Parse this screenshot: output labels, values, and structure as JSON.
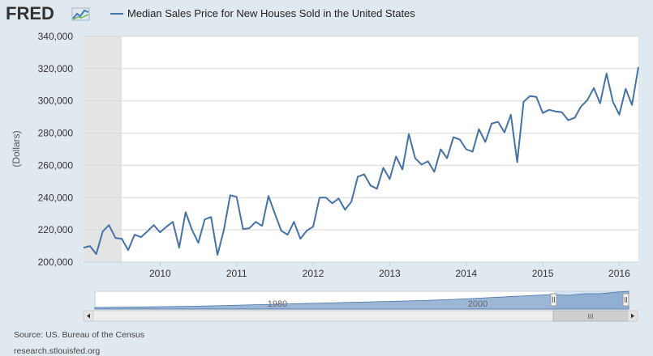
{
  "logo": {
    "text": "FRED"
  },
  "legend": {
    "label": "Median Sales Price for New Houses Sold in the United States",
    "color": "#4572a7"
  },
  "footer": {
    "source": "Source: US. Bureau of the Census",
    "site": "research.stlouisfed.org"
  },
  "navigator": {
    "labels": [
      "1980",
      "2000"
    ],
    "scroll_glyph": "III"
  },
  "chart_data": {
    "type": "line",
    "title": "",
    "xlabel": "",
    "ylabel": "(Dollars)",
    "ylim": [
      200000,
      340000
    ],
    "yticks": [
      200000,
      220000,
      240000,
      260000,
      280000,
      300000,
      320000,
      340000
    ],
    "ytick_labels": [
      "200,000",
      "220,000",
      "240,000",
      "260,000",
      "280,000",
      "300,000",
      "320,000",
      "340,000"
    ],
    "xlim": [
      "2009-01",
      "2016-04"
    ],
    "xticks": [
      "2010-01",
      "2011-01",
      "2012-01",
      "2013-01",
      "2014-01",
      "2015-01",
      "2016-01"
    ],
    "xtick_labels": [
      "2010",
      "2011",
      "2012",
      "2013",
      "2014",
      "2015",
      "2016"
    ],
    "recession_shading": [
      "2009-01",
      "2009-06"
    ],
    "grid": true,
    "series": [
      {
        "name": "Median Sales Price for New Houses Sold in the United States",
        "color": "#4572a7",
        "x": [
          "2009-01",
          "2009-02",
          "2009-03",
          "2009-04",
          "2009-05",
          "2009-06",
          "2009-07",
          "2009-08",
          "2009-09",
          "2009-10",
          "2009-11",
          "2009-12",
          "2010-01",
          "2010-02",
          "2010-03",
          "2010-04",
          "2010-05",
          "2010-06",
          "2010-07",
          "2010-08",
          "2010-09",
          "2010-10",
          "2010-11",
          "2010-12",
          "2011-01",
          "2011-02",
          "2011-03",
          "2011-04",
          "2011-05",
          "2011-06",
          "2011-07",
          "2011-08",
          "2011-09",
          "2011-10",
          "2011-11",
          "2011-12",
          "2012-01",
          "2012-02",
          "2012-03",
          "2012-04",
          "2012-05",
          "2012-06",
          "2012-07",
          "2012-08",
          "2012-09",
          "2012-10",
          "2012-11",
          "2012-12",
          "2013-01",
          "2013-02",
          "2013-03",
          "2013-04",
          "2013-05",
          "2013-06",
          "2013-07",
          "2013-08",
          "2013-09",
          "2013-10",
          "2013-11",
          "2013-12",
          "2014-01",
          "2014-02",
          "2014-03",
          "2014-04",
          "2014-05",
          "2014-06",
          "2014-07",
          "2014-08",
          "2014-09",
          "2014-10",
          "2014-11",
          "2014-12",
          "2015-01",
          "2015-02",
          "2015-03",
          "2015-04",
          "2015-05",
          "2015-06",
          "2015-07",
          "2015-08",
          "2015-09",
          "2015-10",
          "2015-11",
          "2015-12",
          "2016-01",
          "2016-02",
          "2016-03",
          "2016-04"
        ],
        "values": [
          209000,
          210000,
          205000,
          219000,
          223000,
          215000,
          214500,
          207500,
          217000,
          215500,
          219000,
          223000,
          218500,
          222000,
          225000,
          209000,
          231000,
          220000,
          212000,
          226500,
          228000,
          204500,
          220000,
          241500,
          240500,
          220500,
          221000,
          225000,
          222500,
          241000,
          230000,
          219500,
          217000,
          225000,
          214500,
          219500,
          222000,
          240000,
          240000,
          236500,
          239500,
          232500,
          237500,
          253000,
          254500,
          247500,
          245500,
          258500,
          251500,
          265500,
          257500,
          279500,
          264500,
          260500,
          262500,
          256000,
          270000,
          264500,
          277500,
          276000,
          270000,
          268500,
          282500,
          274500,
          286000,
          287000,
          280500,
          291500,
          262000,
          299500,
          303000,
          302500,
          292500,
          294500,
          293500,
          293000,
          288000,
          289500,
          296500,
          300500,
          308000,
          298500,
          317000,
          299500,
          291500,
          307500,
          297500,
          321000
        ]
      }
    ]
  }
}
